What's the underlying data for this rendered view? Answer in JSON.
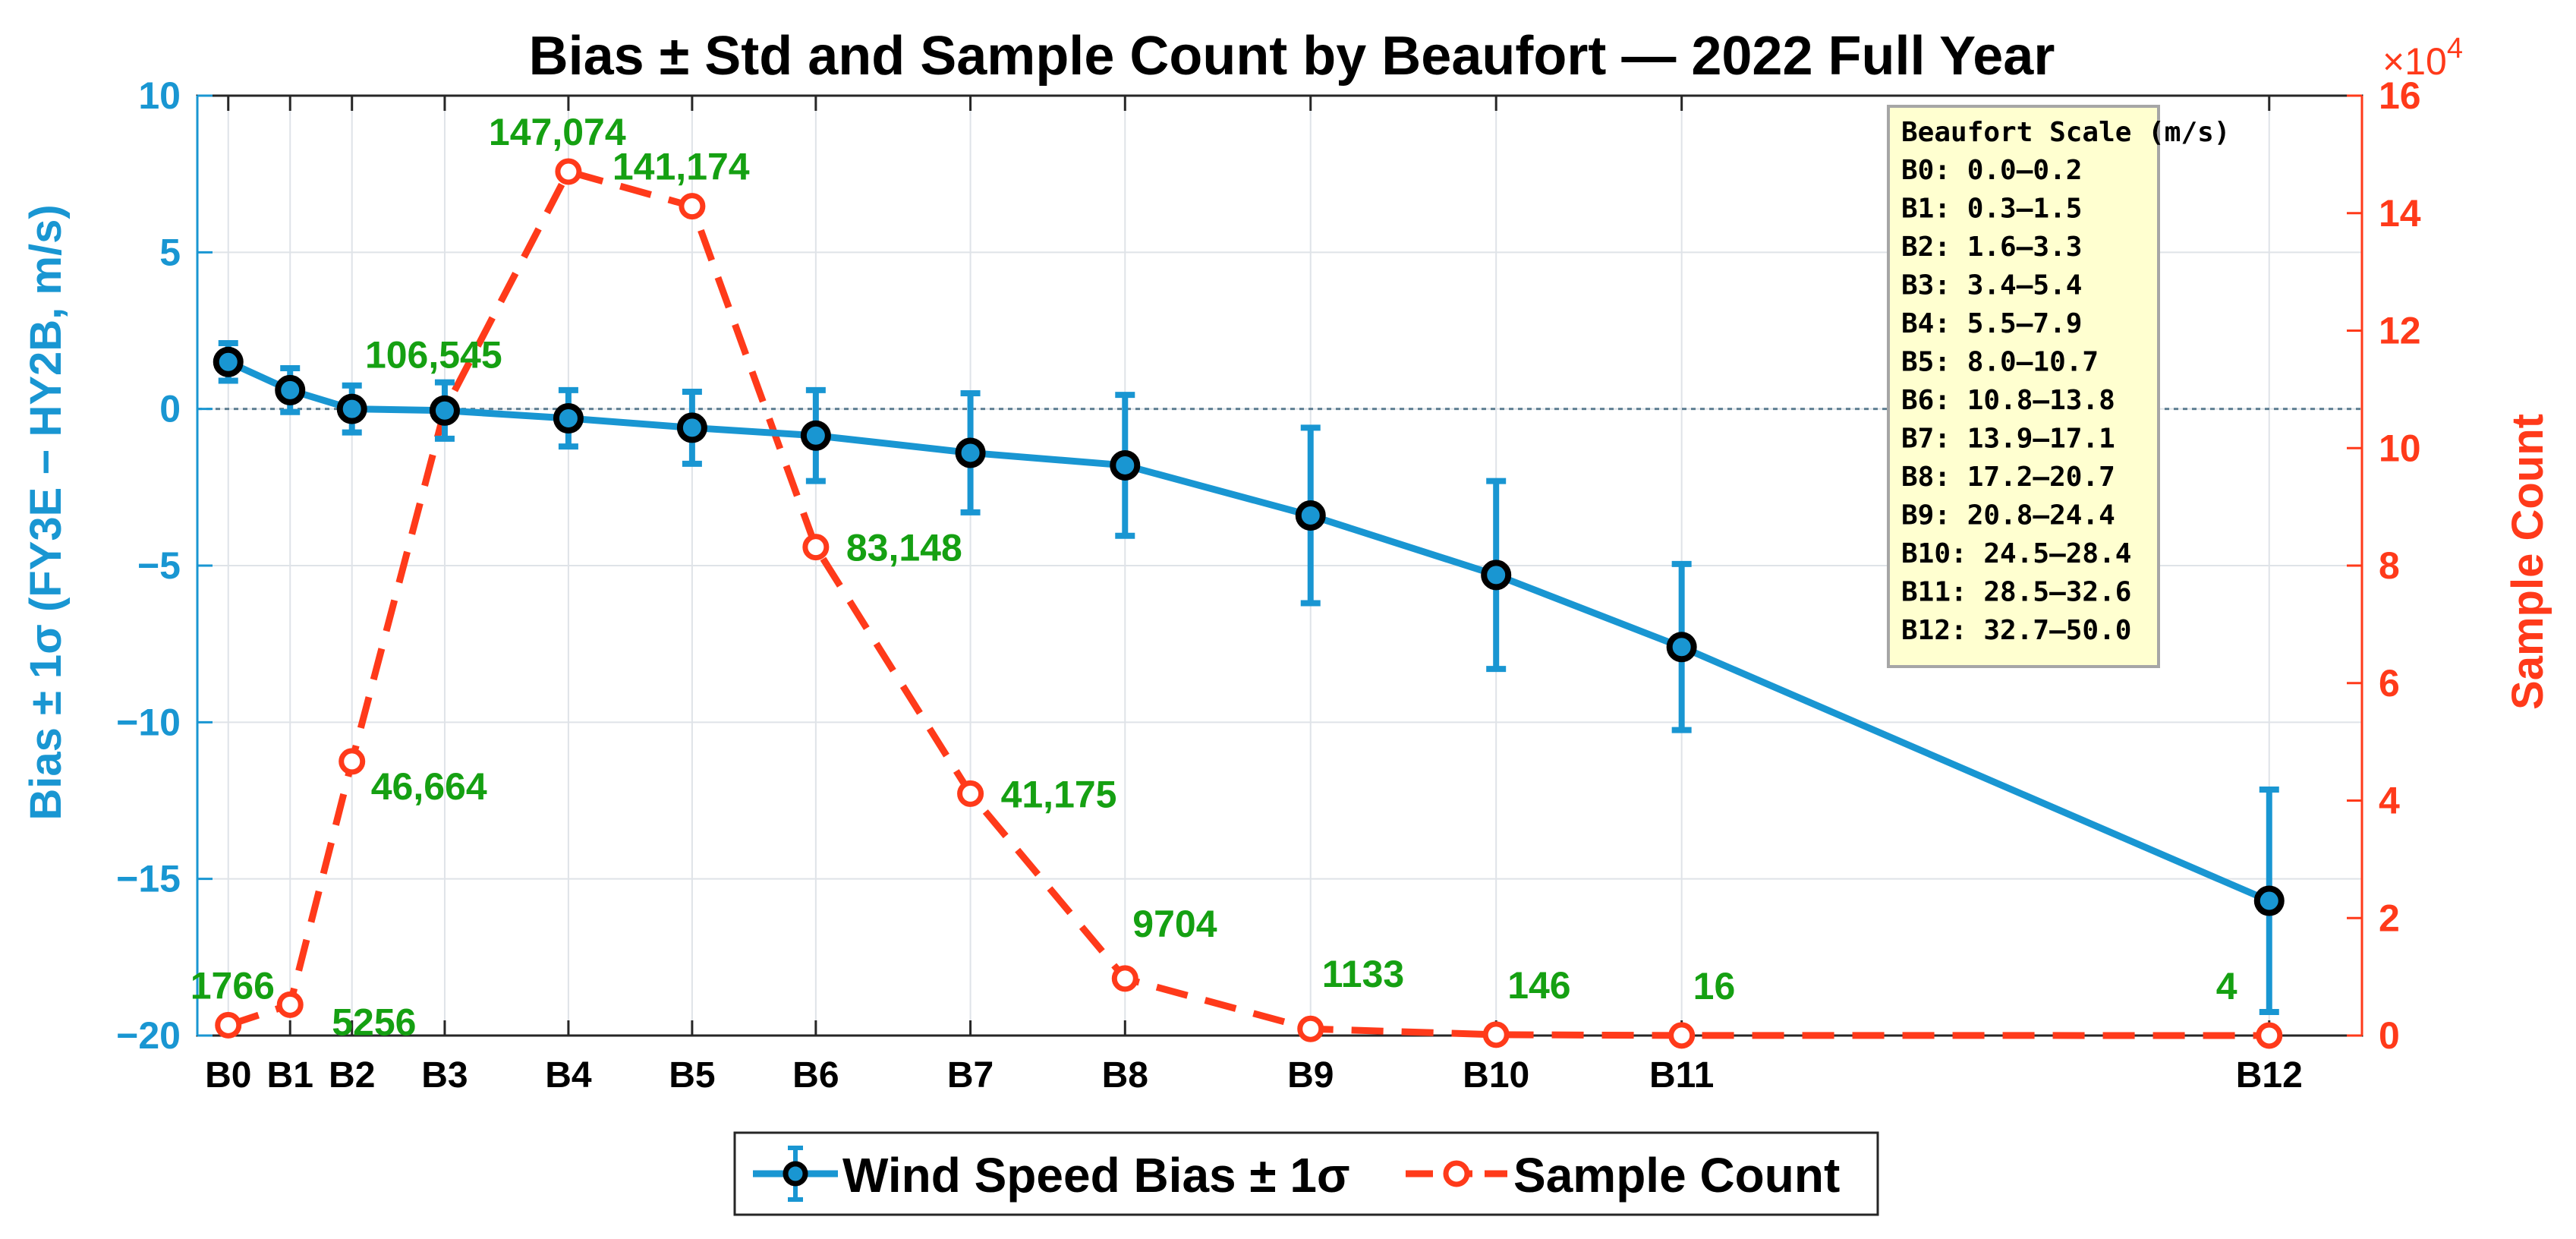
{
  "chart_data": {
    "type": "line",
    "title": "Bias ± Std and Sample Count by Beaufort — 2022 Full Year",
    "categories": [
      "B0",
      "B1",
      "B2",
      "B3",
      "B4",
      "B5",
      "B6",
      "B7",
      "B8",
      "B9",
      "B10",
      "B11",
      "B12"
    ],
    "x_positions_beaufort": [
      0,
      1,
      2,
      3.5,
      5.5,
      7.5,
      9.5,
      12,
      14.5,
      17.5,
      20.5,
      23.5,
      33
    ],
    "x_tick_labels": [
      "B0",
      "B1",
      "B2",
      "B3",
      "B4",
      "B5",
      "B6",
      "B7",
      "B8",
      "B9",
      "B10",
      "B11",
      "B12"
    ],
    "xlim": [
      -0.5,
      34.5
    ],
    "y_left": {
      "label": "Bias ± 1σ (FY3E − HY2B, m/s)",
      "lim": [
        -20,
        10
      ],
      "ticks": [
        10,
        5,
        0,
        -5,
        -10,
        -15,
        -20
      ],
      "tick_labels": [
        "10",
        "5",
        "0",
        "−5",
        "−10",
        "−15",
        "−20"
      ]
    },
    "y_right": {
      "label": "Sample Count",
      "lim": [
        0,
        16
      ],
      "ticks": [
        0,
        2,
        4,
        6,
        8,
        10,
        12,
        14,
        16
      ],
      "tick_labels": [
        "0",
        "2",
        "4",
        "6",
        "8",
        "10",
        "12",
        "14",
        "16"
      ],
      "exponent_label": "×10",
      "exponent_power": "4"
    },
    "series": [
      {
        "name": "Wind Speed Bias ± 1σ",
        "axis": "left",
        "color": "#1996d2",
        "style": "solid-errorbar",
        "values": [
          1.5,
          0.6,
          0.0,
          -0.05,
          -0.3,
          -0.6,
          -0.85,
          -1.4,
          -1.8,
          -3.4,
          -5.3,
          -7.6,
          -15.7
        ],
        "std": [
          0.6,
          0.7,
          0.75,
          0.9,
          0.9,
          1.15,
          1.45,
          1.9,
          2.25,
          2.8,
          3.0,
          2.65,
          3.55
        ]
      },
      {
        "name": "Sample Count",
        "axis": "right",
        "color": "#ff3a1a",
        "style": "dashed-circle",
        "values": [
          1766,
          5256,
          46664,
          106545,
          147074,
          141174,
          83148,
          41175,
          9704,
          1133,
          146,
          16,
          4
        ],
        "data_labels": [
          "1766",
          "5256",
          "46,664",
          "106,545",
          "147,074",
          "141,174",
          "83,148",
          "41,175",
          "9704",
          "1133",
          "146",
          "16",
          "4"
        ]
      }
    ],
    "reference_line": {
      "axis": "left",
      "value": 0,
      "style": "dotted"
    },
    "grid": true,
    "legend": {
      "placement": "bottom-center",
      "entries": [
        "Wind Speed Bias ± 1σ",
        "Sample Count"
      ]
    },
    "annotation_box": {
      "placement": "top-right",
      "title": "Beaufort Scale (m/s)",
      "lines": [
        "B0: 0.0–0.2",
        "B1: 0.3–1.5",
        "B2: 1.6–3.3",
        "B3: 3.4–5.4",
        "B4: 5.5–7.9",
        "B5: 8.0–10.7",
        "B6: 10.8–13.8",
        "B7: 13.9–17.1",
        "B8: 17.2–20.7",
        "B9: 20.8–24.4",
        "B10: 24.5–28.4",
        "B11: 28.5–32.6",
        "B12: 32.7–50.0"
      ],
      "background": "#ffffd0"
    },
    "colors": {
      "left_axis": "#1996d2",
      "right_axis": "#ff3a1a",
      "data_labels": "#15a012",
      "title": "#000000"
    }
  }
}
